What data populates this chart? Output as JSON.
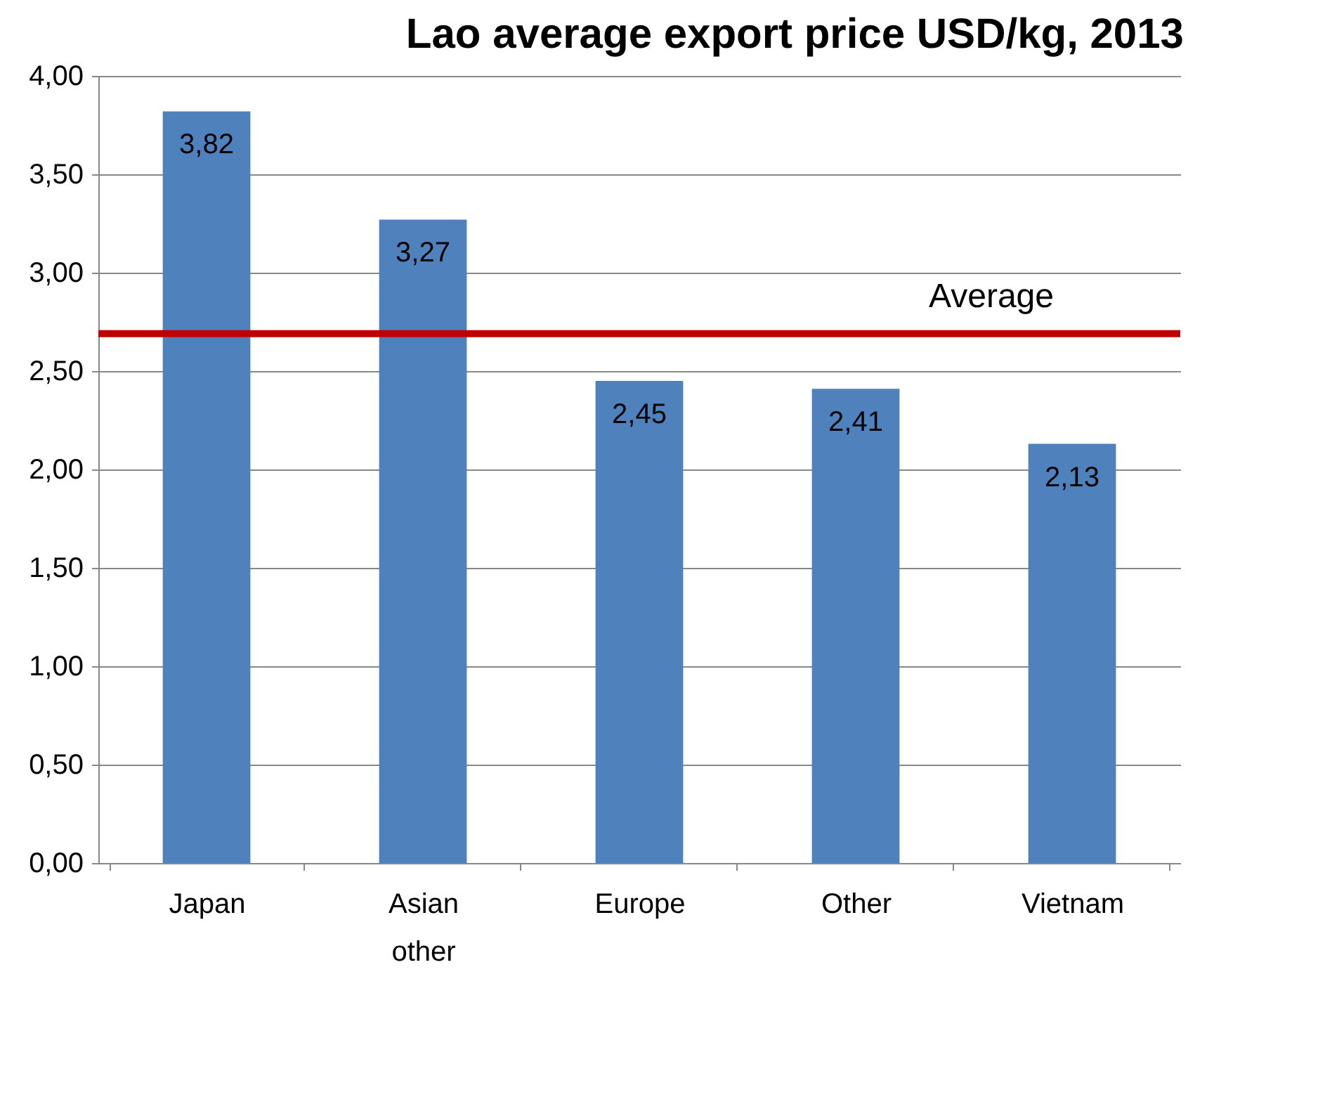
{
  "chart_data": {
    "type": "bar",
    "title": "Lao average export price USD/kg, 2013",
    "categories": [
      "Japan",
      "Asian other",
      "Europe",
      "Other",
      "Vietnam"
    ],
    "values": [
      3.82,
      3.27,
      2.45,
      2.41,
      2.13
    ],
    "value_labels": [
      "3,82",
      "3,27",
      "2,45",
      "2,41",
      "2,13"
    ],
    "color": "#4f81bd",
    "ylim": [
      0,
      4
    ],
    "yticks": [
      {
        "value": 0,
        "label": "0,00"
      },
      {
        "value": 0.5,
        "label": "0,50"
      },
      {
        "value": 1,
        "label": "1,00"
      },
      {
        "value": 1.5,
        "label": "1,50"
      },
      {
        "value": 2,
        "label": "2,00"
      },
      {
        "value": 2.5,
        "label": "2,50"
      },
      {
        "value": 3,
        "label": "3,00"
      },
      {
        "value": 3.5,
        "label": "3,50"
      },
      {
        "value": 4,
        "label": "4,00"
      }
    ],
    "ref_lines": [
      {
        "axis": "y",
        "value": 2.69,
        "label": "Average",
        "color": "#c00000"
      }
    ],
    "grid": "y"
  }
}
